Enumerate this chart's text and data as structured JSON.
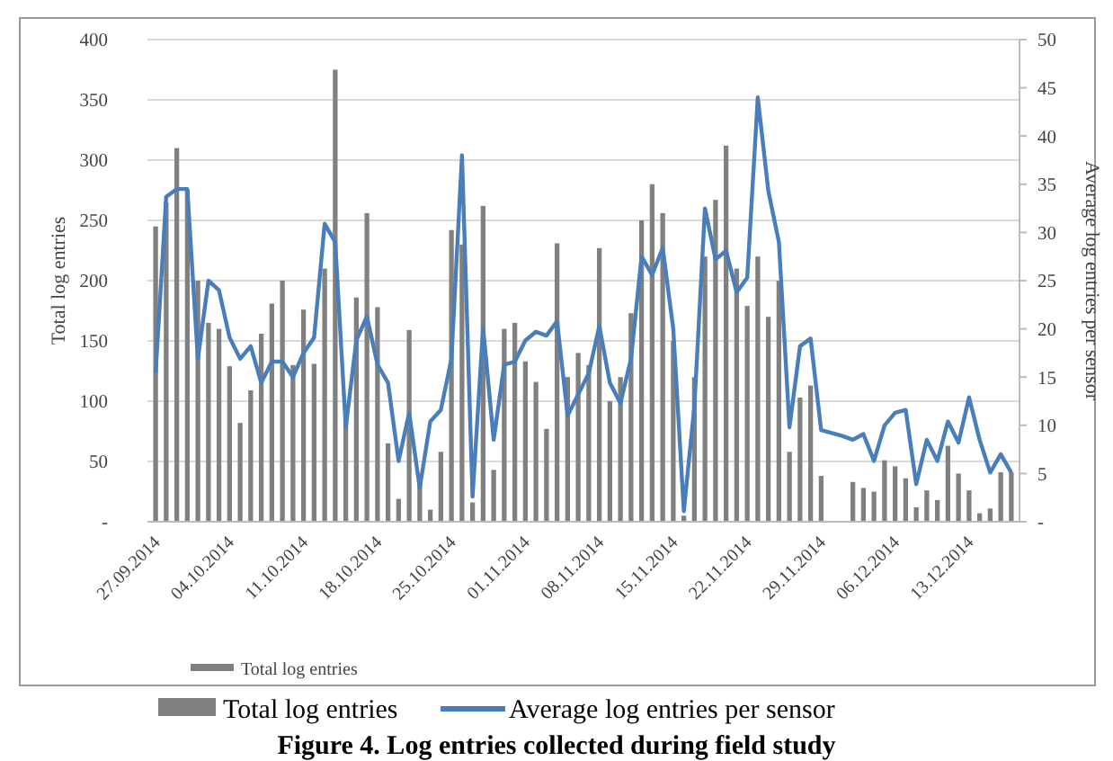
{
  "chart_data": {
    "type": "bar",
    "ylabel": "Total log entries",
    "y2label": "Average log entries per sensor",
    "categories": [
      "27.09.2014",
      null,
      null,
      null,
      null,
      null,
      null,
      "04.10.2014",
      null,
      null,
      null,
      null,
      null,
      null,
      "11.10.2014",
      null,
      null,
      null,
      null,
      null,
      null,
      "18.10.2014",
      null,
      null,
      null,
      null,
      null,
      null,
      "25.10.2014",
      null,
      null,
      null,
      null,
      null,
      null,
      "01.11.2014",
      null,
      null,
      null,
      null,
      null,
      null,
      "08.11.2014",
      null,
      null,
      null,
      null,
      null,
      null,
      "15.11.2014",
      null,
      null,
      null,
      null,
      null,
      null,
      "22.11.2014",
      null,
      null,
      null,
      null,
      null,
      null,
      "29.11.2014",
      null,
      null,
      null,
      null,
      null,
      null,
      "06.12.2014",
      null,
      null,
      null,
      null,
      null,
      null,
      "13.12.2014",
      null,
      null,
      null,
      null
    ],
    "series": [
      {
        "name": "Total log entries",
        "color": "#808080",
        "values": [
          245,
          265,
          310,
          275,
          200,
          165,
          160,
          129,
          82,
          109,
          156,
          181,
          200,
          130,
          176,
          131,
          210,
          375,
          85,
          186,
          256,
          178,
          65,
          19,
          159,
          40,
          10,
          58,
          242,
          230,
          16,
          262,
          43,
          160,
          165,
          133,
          116,
          77,
          231,
          120,
          140,
          130,
          227,
          100,
          120,
          173,
          250,
          280,
          256,
          150,
          5,
          120,
          220,
          267,
          312,
          210,
          179,
          220,
          170,
          200,
          58,
          103,
          113,
          38,
          null,
          null,
          33,
          28,
          25,
          51,
          46,
          36,
          12,
          26,
          18,
          63,
          40,
          26,
          7,
          11,
          41,
          41
        ]
      },
      {
        "name": "Average log entries per sensor",
        "type": "line",
        "axis": "y2",
        "color": "#4a7ebb",
        "values": [
          15.4,
          33.7,
          34.5,
          34.5,
          16.9,
          25,
          24,
          19.1,
          16.9,
          18.2,
          14.4,
          16.6,
          16.6,
          15,
          17.5,
          19.1,
          30.9,
          29,
          9.8,
          18.8,
          21.3,
          16.3,
          14.4,
          6.3,
          11.3,
          3.5,
          10.4,
          11.6,
          16.9,
          38,
          2.6,
          20.1,
          8.5,
          16.3,
          16.6,
          18.8,
          19.7,
          19.3,
          20.8,
          11,
          13.2,
          15.4,
          20.3,
          14.4,
          12.3,
          16.9,
          27.5,
          25.6,
          28.4,
          20,
          1.1,
          12,
          32.5,
          27.2,
          28.1,
          23.8,
          25.3,
          44,
          34.3,
          29,
          9.8,
          18.2,
          19,
          9.5,
          9.2,
          8.9,
          8.5,
          9.1,
          6.3,
          10,
          11.3,
          11.6,
          3.9,
          8.5,
          6.3,
          10.4,
          8.2,
          12.9,
          8.5,
          5.1,
          7,
          5.1
        ]
      }
    ],
    "ylim": [
      0,
      400
    ],
    "yticks": [
      {
        "value": 0,
        "label": "-"
      },
      50,
      100,
      150,
      200,
      250,
      300,
      350,
      400
    ],
    "y2lim": [
      0,
      50
    ],
    "y2ticks": [
      {
        "value": 0,
        "label": "-"
      },
      5,
      10,
      15,
      20,
      25,
      30,
      35,
      40,
      45,
      50
    ],
    "grid": "y",
    "legend": "bottom",
    "line_style": "solid",
    "marker": "none",
    "annotations": [
      "Total log entries",
      "Figure 4. Log entries collected during field study"
    ]
  }
}
